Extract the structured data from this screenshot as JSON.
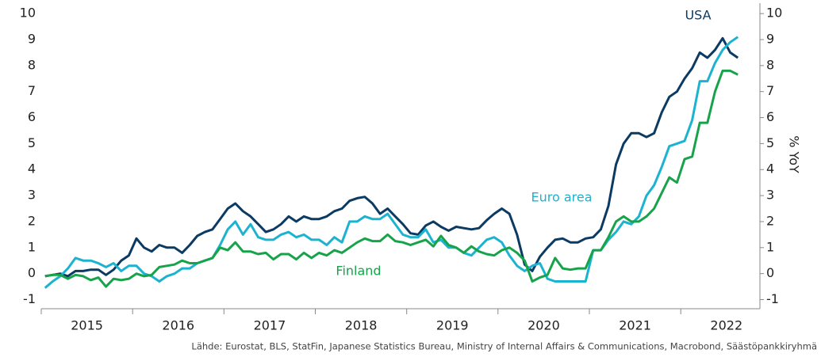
{
  "chart_data": {
    "type": "line",
    "categories": [
      null,
      null,
      null,
      null,
      null,
      null,
      "2015",
      null,
      null,
      null,
      null,
      null,
      null,
      null,
      null,
      null,
      null,
      null,
      "2016",
      null,
      null,
      null,
      null,
      null,
      null,
      null,
      null,
      null,
      null,
      null,
      "2017",
      null,
      null,
      null,
      null,
      null,
      null,
      null,
      null,
      null,
      null,
      null,
      "2018",
      null,
      null,
      null,
      null,
      null,
      null,
      null,
      null,
      null,
      null,
      null,
      "2019",
      null,
      null,
      null,
      null,
      null,
      null,
      null,
      null,
      null,
      null,
      null,
      "2020",
      null,
      null,
      null,
      null,
      null,
      null,
      null,
      null,
      null,
      null,
      null,
      "2021",
      null,
      null,
      null,
      null,
      null,
      null,
      null,
      null,
      null,
      null,
      null,
      "2022",
      null
    ],
    "series": [
      {
        "name": "USA",
        "color": "#0b3a63",
        "values": [
          -0.1,
          -0.05,
          0.0,
          -0.1,
          0.1,
          0.1,
          0.15,
          0.15,
          -0.05,
          0.15,
          0.5,
          0.7,
          1.35,
          1.0,
          0.85,
          1.1,
          1.0,
          1.0,
          0.8,
          1.1,
          1.45,
          1.6,
          1.7,
          2.1,
          2.5,
          2.7,
          2.4,
          2.2,
          1.9,
          1.6,
          1.7,
          1.9,
          2.2,
          2.0,
          2.2,
          2.1,
          2.1,
          2.2,
          2.4,
          2.5,
          2.8,
          2.9,
          2.95,
          2.7,
          2.3,
          2.5,
          2.2,
          1.9,
          1.55,
          1.5,
          1.85,
          2.0,
          1.8,
          1.65,
          1.8,
          1.75,
          1.7,
          1.75,
          2.05,
          2.3,
          2.5,
          2.3,
          1.5,
          0.35,
          0.1,
          0.65,
          1.0,
          1.3,
          1.35,
          1.2,
          1.2,
          1.35,
          1.4,
          1.7,
          2.6,
          4.2,
          5.0,
          5.4,
          5.4,
          5.25,
          5.4,
          6.2,
          6.8,
          7.0,
          7.5,
          7.9,
          8.5,
          8.3,
          8.6,
          9.05,
          8.5,
          8.3
        ]
      },
      {
        "name": "Euro area",
        "color": "#1bb3cf",
        "values": [
          -0.55,
          -0.3,
          -0.1,
          0.2,
          0.6,
          0.5,
          0.5,
          0.4,
          0.25,
          0.4,
          0.1,
          0.3,
          0.3,
          0.0,
          -0.1,
          -0.3,
          -0.1,
          0.0,
          0.2,
          0.2,
          0.4,
          0.5,
          0.6,
          1.1,
          1.7,
          2.0,
          1.5,
          1.9,
          1.4,
          1.3,
          1.3,
          1.5,
          1.6,
          1.4,
          1.5,
          1.3,
          1.3,
          1.1,
          1.4,
          1.2,
          2.0,
          2.0,
          2.2,
          2.1,
          2.1,
          2.3,
          1.9,
          1.5,
          1.4,
          1.4,
          1.7,
          1.2,
          1.3,
          1.0,
          1.0,
          0.8,
          0.7,
          1.0,
          1.3,
          1.4,
          1.2,
          0.7,
          0.3,
          0.1,
          0.3,
          0.4,
          -0.2,
          -0.3,
          -0.3,
          -0.3,
          -0.3,
          -0.3,
          0.9,
          0.9,
          1.3,
          1.6,
          2.0,
          1.9,
          2.2,
          3.0,
          3.4,
          4.1,
          4.9,
          5.0,
          5.1,
          5.9,
          7.4,
          7.4,
          8.1,
          8.6,
          8.9,
          9.1
        ]
      },
      {
        "name": "Finland",
        "color": "#17a34a",
        "values": [
          -0.1,
          -0.05,
          -0.05,
          -0.2,
          -0.05,
          -0.1,
          -0.25,
          -0.15,
          -0.5,
          -0.2,
          -0.25,
          -0.2,
          0.0,
          -0.1,
          -0.05,
          0.25,
          0.3,
          0.35,
          0.5,
          0.4,
          0.4,
          0.5,
          0.6,
          1.0,
          0.9,
          1.2,
          0.85,
          0.85,
          0.75,
          0.8,
          0.55,
          0.75,
          0.75,
          0.55,
          0.8,
          0.6,
          0.8,
          0.7,
          0.9,
          0.8,
          1.0,
          1.2,
          1.35,
          1.25,
          1.25,
          1.5,
          1.25,
          1.2,
          1.1,
          1.2,
          1.3,
          1.05,
          1.45,
          1.1,
          1.0,
          0.8,
          1.05,
          0.85,
          0.75,
          0.7,
          0.9,
          1.0,
          0.8,
          0.5,
          -0.3,
          -0.15,
          -0.05,
          0.6,
          0.2,
          0.15,
          0.2,
          0.2,
          0.9,
          0.9,
          1.4,
          2.0,
          2.2,
          2.0,
          2.0,
          2.2,
          2.5,
          3.1,
          3.7,
          3.5,
          4.4,
          4.5,
          5.8,
          5.8,
          7.0,
          7.8,
          7.8,
          7.65
        ]
      }
    ],
    "ylim": [
      -1.35,
      10.4
    ],
    "yticks": [
      -1,
      0,
      1,
      2,
      3,
      4,
      5,
      6,
      7,
      8,
      9,
      10
    ],
    "y2lim": [
      -1.35,
      10.4
    ],
    "y2ticks": [
      -1,
      0,
      1,
      2,
      3,
      4,
      5,
      6,
      7,
      8,
      9,
      10
    ],
    "y2label": "% YoY",
    "annotations": [
      "USA",
      "Euro area",
      "Finland"
    ],
    "source": "Lähde: Eurostat, BLS, StatFin, Japanese Statistics Bureau, Ministry of Internal Affairs & Communications, Macrobond, Säästöpankkiryhmä",
    "grid": false
  }
}
